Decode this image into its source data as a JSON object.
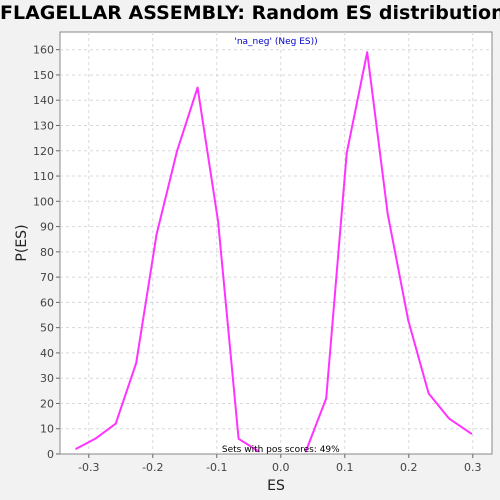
{
  "chart_data": {
    "type": "line",
    "title": "FLAGELLAR ASSEMBLY: Random ES distribution",
    "xlabel": "ES",
    "ylabel": "P(ES)",
    "xlim": [
      -0.345,
      0.33
    ],
    "ylim": [
      0,
      167
    ],
    "x_ticks": [
      -0.3,
      -0.2,
      -0.1,
      0.0,
      0.1,
      0.2,
      0.3
    ],
    "x_tick_labels": [
      "-0.3",
      "-0.2",
      "-0.1",
      "0.0",
      "0.1",
      "0.2",
      "0.3"
    ],
    "y_ticks": [
      0,
      10,
      20,
      30,
      40,
      50,
      60,
      70,
      80,
      90,
      100,
      110,
      120,
      130,
      140,
      150,
      160
    ],
    "grid": true,
    "legend": "top-center",
    "annotation": "Sets with pos scores: 49%",
    "series": [
      {
        "name": "'na_neg' (Neg ES))",
        "color": "#ff33ff",
        "points": [
          [
            -0.32,
            2
          ],
          [
            -0.29,
            6
          ],
          [
            -0.258,
            12
          ],
          [
            -0.226,
            36
          ],
          [
            -0.194,
            87
          ],
          [
            -0.162,
            120
          ],
          [
            -0.13,
            145
          ],
          [
            -0.098,
            92
          ],
          [
            -0.066,
            6
          ],
          [
            -0.034,
            1
          ]
        ]
      },
      {
        "name": "",
        "color": "#ff33ff",
        "points": [
          [
            0.039,
            1
          ],
          [
            0.071,
            22
          ],
          [
            0.103,
            119
          ],
          [
            0.135,
            159
          ],
          [
            0.167,
            95
          ],
          [
            0.199,
            53
          ],
          [
            0.231,
            24
          ],
          [
            0.263,
            14
          ],
          [
            0.298,
            8
          ]
        ]
      }
    ]
  }
}
